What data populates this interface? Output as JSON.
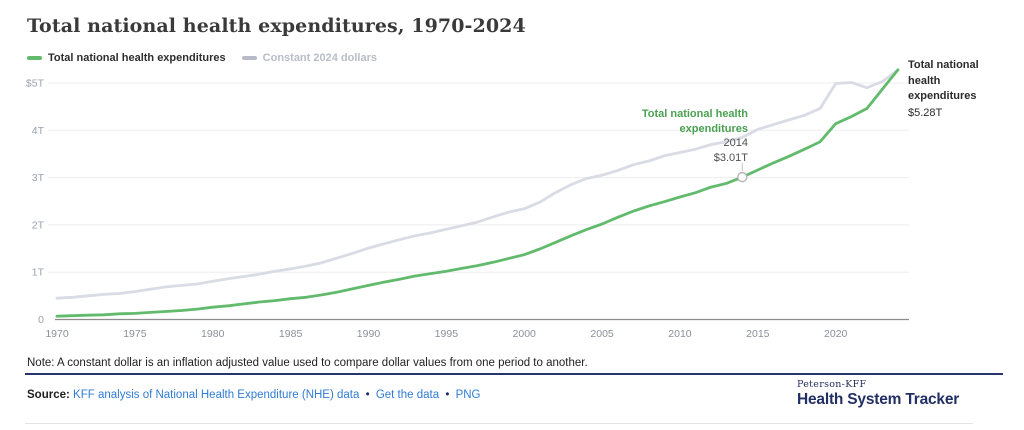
{
  "header": {
    "title": "Total national health expenditures, 1970-2024"
  },
  "legend": [
    {
      "label": "Total national health expenditures",
      "color": "#62ba6c",
      "text_color": "#2e2e2e"
    },
    {
      "label": "Constant 2024 dollars",
      "color": "#b7bbc8",
      "text_color": "#b9bdc7"
    }
  ],
  "chart_data": {
    "type": "line",
    "title": "Total national health expenditures, 1970-2024",
    "xlabel": "",
    "ylabel": "",
    "grid": "horizontal",
    "legend_position": "top-left",
    "ylim": [
      0,
      5.4
    ],
    "x_unit": "year",
    "y_unit": "trillions USD",
    "years": [
      1970,
      1971,
      1972,
      1973,
      1974,
      1975,
      1976,
      1977,
      1978,
      1979,
      1980,
      1981,
      1982,
      1983,
      1984,
      1985,
      1986,
      1987,
      1988,
      1989,
      1990,
      1991,
      1992,
      1993,
      1994,
      1995,
      1996,
      1997,
      1998,
      1999,
      2000,
      2001,
      2002,
      2003,
      2004,
      2005,
      2006,
      2007,
      2008,
      2009,
      2010,
      2011,
      2012,
      2013,
      2014,
      2015,
      2016,
      2017,
      2018,
      2019,
      2020,
      2021,
      2022,
      2023,
      2024
    ],
    "series": [
      {
        "name": "Total national health expenditures",
        "color": "#62ba6c",
        "values": [
          0.07,
          0.08,
          0.09,
          0.1,
          0.12,
          0.13,
          0.15,
          0.17,
          0.19,
          0.22,
          0.26,
          0.29,
          0.33,
          0.37,
          0.4,
          0.44,
          0.47,
          0.52,
          0.58,
          0.65,
          0.72,
          0.79,
          0.85,
          0.92,
          0.97,
          1.02,
          1.08,
          1.14,
          1.21,
          1.29,
          1.37,
          1.49,
          1.63,
          1.77,
          1.9,
          2.02,
          2.16,
          2.29,
          2.4,
          2.49,
          2.59,
          2.68,
          2.8,
          2.88,
          3.01,
          3.16,
          3.31,
          3.45,
          3.6,
          3.76,
          4.14,
          4.29,
          4.46,
          4.87,
          5.28
        ]
      },
      {
        "name": "Constant 2024 dollars",
        "color": "#d9dbe5",
        "values": [
          0.45,
          0.47,
          0.5,
          0.53,
          0.55,
          0.59,
          0.64,
          0.69,
          0.72,
          0.75,
          0.81,
          0.86,
          0.91,
          0.96,
          1.02,
          1.07,
          1.13,
          1.2,
          1.3,
          1.4,
          1.51,
          1.6,
          1.69,
          1.77,
          1.83,
          1.91,
          1.98,
          2.06,
          2.17,
          2.27,
          2.34,
          2.48,
          2.68,
          2.85,
          2.98,
          3.05,
          3.15,
          3.27,
          3.35,
          3.46,
          3.53,
          3.6,
          3.7,
          3.76,
          3.85,
          4.02,
          4.12,
          4.22,
          4.32,
          4.46,
          4.99,
          5.01,
          4.9,
          5.03,
          5.28
        ]
      }
    ],
    "yticks": [
      {
        "label": "$5T",
        "value": 5
      },
      {
        "label": "4T",
        "value": 4
      },
      {
        "label": "3T",
        "value": 3
      },
      {
        "label": "2T",
        "value": 2
      },
      {
        "label": "1T",
        "value": 1
      },
      {
        "label": "0",
        "value": 0
      }
    ],
    "xticks": [
      1970,
      1975,
      1980,
      1985,
      1990,
      1995,
      2000,
      2005,
      2010,
      2015,
      2020
    ],
    "annotations": {
      "point_2014": {
        "series": "Total national health expenditures",
        "label_title": "Total national health expenditures",
        "year_label": "2014",
        "value_label": "$3.01T",
        "year": 2014,
        "value": 3.01
      },
      "end_label": {
        "title": "Total national health expenditures",
        "value_label": "$5.28T",
        "year": 2024,
        "value": 5.28
      }
    }
  },
  "note": "Note: A constant dollar is an inflation adjusted value used to compare dollar values from one period to another.",
  "source": {
    "label": "Source:",
    "link_nhe": "KFF analysis of National Health Expenditure (NHE) data",
    "link_get_data": "Get the data",
    "link_png": "PNG",
    "separator": "•"
  },
  "branding": {
    "line1": "Peterson-KFF",
    "line2": "Health System Tracker"
  },
  "colors": {
    "accent_green": "#62ba6c",
    "constant_gray": "#d9dbe5",
    "navy": "#222f65",
    "link_blue": "#2f7cd6",
    "grid": "#ededf0",
    "axis": "#8c8c8c"
  }
}
